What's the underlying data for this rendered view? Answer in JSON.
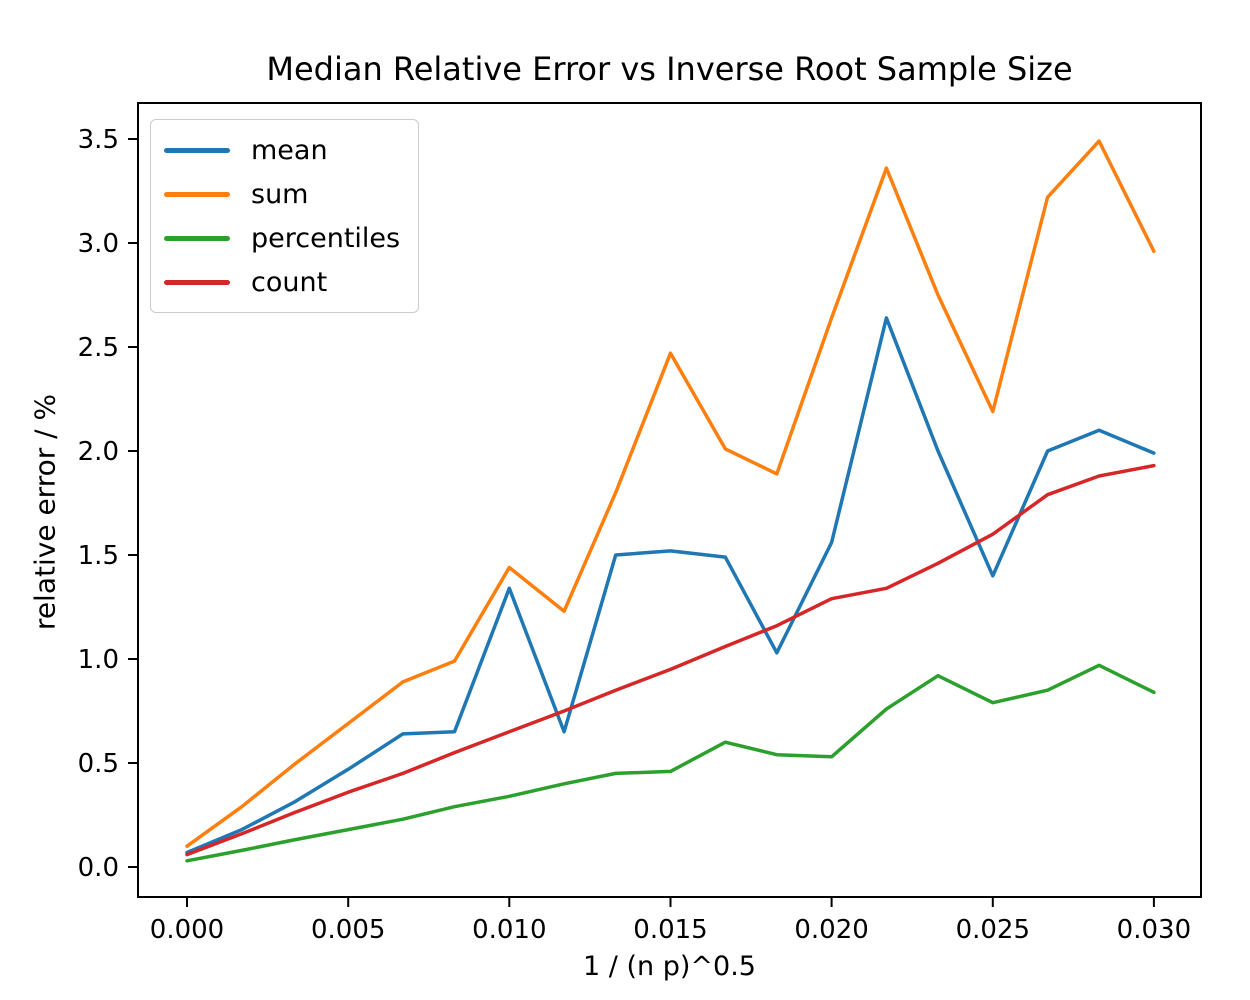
{
  "chart_data": {
    "type": "line",
    "title": "Median Relative Error vs Inverse Root Sample Size",
    "xlabel": "1 / (n p)^0.5",
    "ylabel": "relative error / %",
    "grid": false,
    "legend_position": "upper left",
    "xlim": [
      -0.00152,
      0.03146
    ],
    "ylim": [
      -0.144,
      3.673
    ],
    "x_tick_values": [
      0.0,
      0.005,
      0.01,
      0.015,
      0.02,
      0.025,
      0.03
    ],
    "x_tick_labels": [
      "0.000",
      "0.005",
      "0.010",
      "0.015",
      "0.020",
      "0.025",
      "0.030"
    ],
    "y_tick_values": [
      0.0,
      0.5,
      1.0,
      1.5,
      2.0,
      2.5,
      3.0,
      3.5
    ],
    "y_tick_labels": [
      "0.0",
      "0.5",
      "1.0",
      "1.5",
      "2.0",
      "2.5",
      "3.0",
      "3.5"
    ],
    "x": [
      0.0,
      0.0017,
      0.0033,
      0.005,
      0.0067,
      0.0083,
      0.01,
      0.0117,
      0.0133,
      0.015,
      0.0167,
      0.0183,
      0.02,
      0.0217,
      0.0233,
      0.025,
      0.0267,
      0.0283,
      0.03
    ],
    "series": [
      {
        "name": "mean",
        "color": "#1f77b4",
        "values": [
          0.07,
          0.18,
          0.31,
          0.47,
          0.64,
          0.65,
          1.34,
          0.65,
          1.5,
          1.52,
          1.49,
          1.03,
          1.56,
          2.64,
          2.0,
          1.4,
          2.0,
          2.1,
          1.99
        ]
      },
      {
        "name": "sum",
        "color": "#ff7f0e",
        "values": [
          0.1,
          0.29,
          0.49,
          0.69,
          0.89,
          0.99,
          1.44,
          1.23,
          1.8,
          2.47,
          2.01,
          1.89,
          2.64,
          3.36,
          2.75,
          2.19,
          3.22,
          3.49,
          2.96
        ]
      },
      {
        "name": "percentiles",
        "color": "#2ca02c",
        "values": [
          0.03,
          0.08,
          0.13,
          0.18,
          0.23,
          0.29,
          0.34,
          0.4,
          0.45,
          0.46,
          0.6,
          0.54,
          0.53,
          0.76,
          0.92,
          0.79,
          0.85,
          0.97,
          0.84
        ]
      },
      {
        "name": "count",
        "color": "#d62728",
        "values": [
          0.06,
          0.16,
          0.26,
          0.36,
          0.45,
          0.55,
          0.65,
          0.75,
          0.85,
          0.95,
          1.06,
          1.16,
          1.29,
          1.34,
          1.46,
          1.6,
          1.79,
          1.88,
          1.93
        ]
      }
    ]
  }
}
